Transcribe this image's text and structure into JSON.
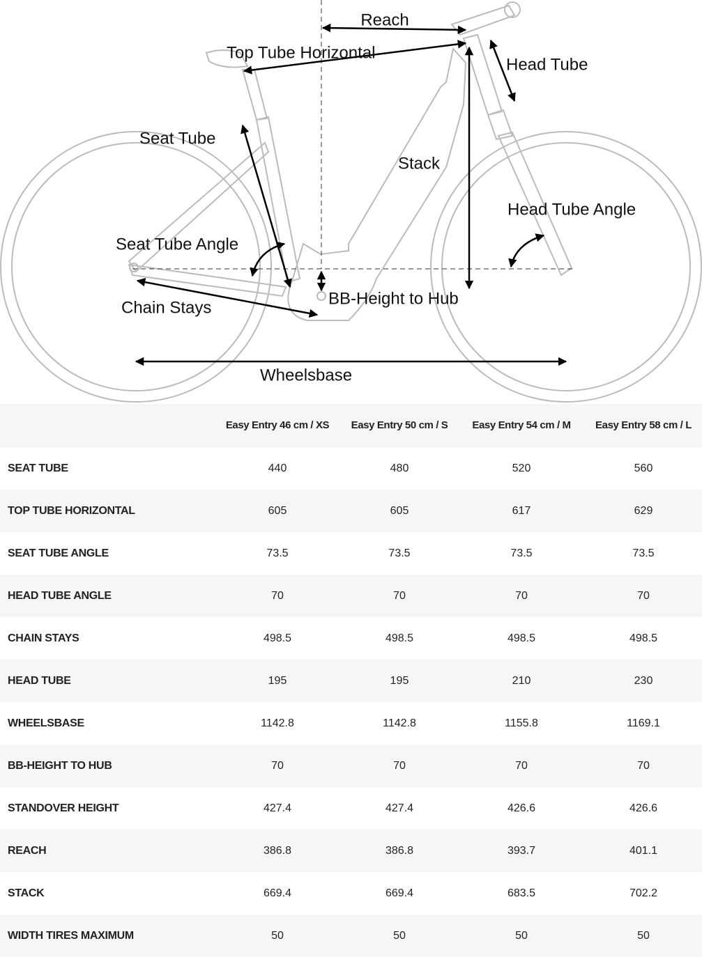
{
  "diagram": {
    "labels": {
      "reach": "Reach",
      "top_tube": "Top Tube Horizontal",
      "head_tube": "Head Tube",
      "seat_tube": "Seat Tube",
      "stack": "Stack",
      "head_tube_angle": "Head Tube Angle",
      "seat_tube_angle": "Seat Tube Angle",
      "chain_stays": "Chain Stays",
      "bb_height": "BB-Height to Hub",
      "wheelbase": "Wheelsbase"
    }
  },
  "table": {
    "columns": [
      "Easy Entry 46 cm / XS",
      "Easy Entry 50 cm / S",
      "Easy Entry 54 cm / M",
      "Easy Entry 58 cm / L"
    ],
    "rows": [
      [
        "SEAT TUBE",
        "440",
        "480",
        "520",
        "560"
      ],
      [
        "TOP TUBE HORIZONTAL",
        "605",
        "605",
        "617",
        "629"
      ],
      [
        "SEAT TUBE ANGLE",
        "73.5",
        "73.5",
        "73.5",
        "73.5"
      ],
      [
        "HEAD TUBE ANGLE",
        "70",
        "70",
        "70",
        "70"
      ],
      [
        "CHAIN STAYS",
        "498.5",
        "498.5",
        "498.5",
        "498.5"
      ],
      [
        "HEAD TUBE",
        "195",
        "195",
        "210",
        "230"
      ],
      [
        "WHEELSBASE",
        "1142.8",
        "1142.8",
        "1155.8",
        "1169.1"
      ],
      [
        "BB-HEIGHT TO HUB",
        "70",
        "70",
        "70",
        "70"
      ],
      [
        "STANDOVER HEIGHT",
        "427.4",
        "427.4",
        "426.6",
        "426.6"
      ],
      [
        "REACH",
        "386.8",
        "386.8",
        "393.7",
        "401.1"
      ],
      [
        "STACK",
        "669.4",
        "669.4",
        "683.5",
        "702.2"
      ],
      [
        "WIDTH TIRES MAXIMUM",
        "50",
        "50",
        "50",
        "50"
      ]
    ]
  }
}
